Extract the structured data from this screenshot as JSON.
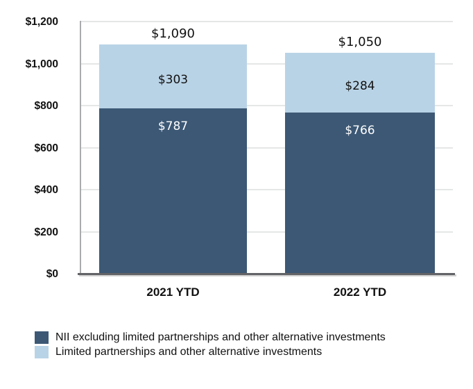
{
  "chart_data": {
    "type": "bar",
    "stacked": true,
    "title": "",
    "categories": [
      "2021 YTD",
      "2022 YTD"
    ],
    "series": [
      {
        "name": "NII excluding limited partnerships and other alternative investments",
        "color": "#3c5875",
        "values": [
          787,
          766
        ],
        "value_labels": [
          "$787",
          "$766"
        ],
        "label_color": "#ffffff"
      },
      {
        "name": "Limited partnerships and other alternative investments",
        "color": "#b9d3e6",
        "values": [
          303,
          284
        ],
        "value_labels": [
          "$303",
          "$284"
        ],
        "label_color": "#111111"
      }
    ],
    "totals": [
      1090,
      1050
    ],
    "total_labels": [
      "$1,090",
      "$1,050"
    ],
    "y_axis": {
      "min": 0,
      "max": 1200,
      "ticks": [
        0,
        200,
        400,
        600,
        800,
        1000,
        1200
      ],
      "tick_labels": [
        "$0",
        "$200",
        "$400",
        "$600",
        "$800",
        "$1,000",
        "$1,200"
      ]
    },
    "legend": [
      {
        "label": "NII excluding limited partnerships and other alternative investments",
        "color": "#3c5875"
      },
      {
        "label": "Limited partnerships and other alternative investments",
        "color": "#b9d3e6"
      }
    ],
    "grid": "horizontal-light",
    "legend_position": "bottom-left"
  },
  "colors": {
    "background": "#ffffff",
    "series_dark": "#3c5875",
    "series_light": "#b9d3e6",
    "gridline": "#e5e6e6",
    "x_axis_line": "#626366",
    "y_axis_line": "#a9abad",
    "text": "#111111",
    "value_label_on_dark": "#ffffff"
  }
}
